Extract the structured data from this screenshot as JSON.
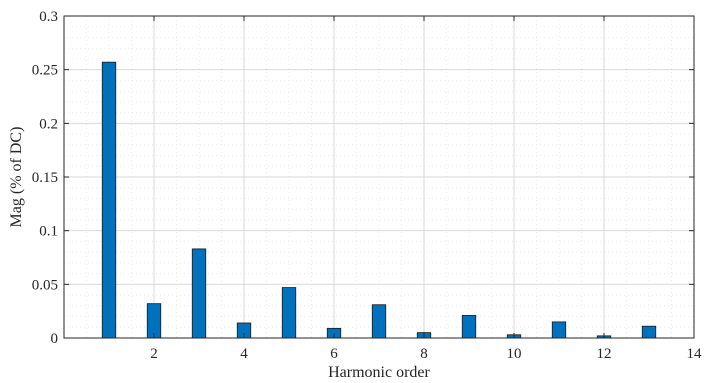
{
  "chart_data": {
    "type": "bar",
    "x": [
      1,
      2,
      3,
      4,
      5,
      6,
      7,
      8,
      9,
      10,
      11,
      12,
      13
    ],
    "values": [
      0.257,
      0.032,
      0.083,
      0.014,
      0.047,
      0.009,
      0.031,
      0.005,
      0.021,
      0.003,
      0.015,
      0.002,
      0.011
    ],
    "xlabel": "Harmonic order",
    "ylabel": "Mag (% of DC)",
    "xlim": [
      0,
      14
    ],
    "ylim": [
      0,
      0.3
    ],
    "xticks": [
      2,
      4,
      6,
      8,
      10,
      12,
      14
    ],
    "xtick_labels": [
      "2",
      "4",
      "6",
      "8",
      "10",
      "12",
      "14"
    ],
    "yticks": [
      0,
      0.05,
      0.1,
      0.15,
      0.2,
      0.25,
      0.3
    ],
    "ytick_labels": [
      "0",
      "0.05",
      "0.1",
      "0.15",
      "0.2",
      "0.25",
      "0.3"
    ],
    "grid": true,
    "minor_grid": true,
    "colors": {
      "bar_fill": "#0072BD",
      "bar_stroke": "#1a1a1a",
      "axis": "#262626",
      "grid": "#d9d9d9",
      "minor_grid": "#ececec"
    }
  }
}
